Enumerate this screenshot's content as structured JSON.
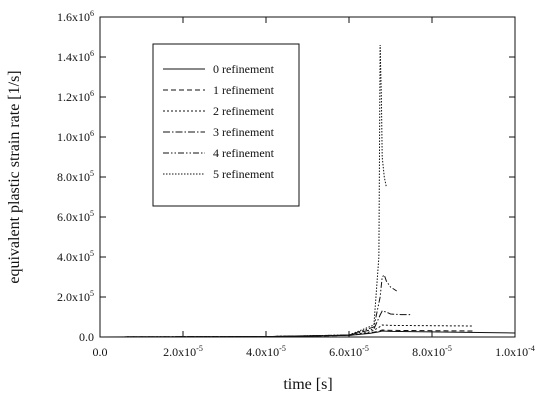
{
  "chart_data": {
    "type": "line",
    "title": "",
    "xlabel": "time [s]",
    "ylabel": "equivalent plastic strain rate [1/s]",
    "xlim": [
      0,
      0.0001
    ],
    "ylim": [
      0,
      1600000
    ],
    "grid": false,
    "legend_position": "top-left",
    "x_ticks": [
      {
        "value": 0,
        "label": "0.0"
      },
      {
        "value": 2e-05,
        "label": "2.0x10",
        "exp": "-5"
      },
      {
        "value": 4e-05,
        "label": "4.0x10",
        "exp": "-5"
      },
      {
        "value": 6e-05,
        "label": "6.0x10",
        "exp": "-5"
      },
      {
        "value": 8e-05,
        "label": "8.0x10",
        "exp": "-5"
      },
      {
        "value": 0.0001,
        "label": "1.0x10",
        "exp": "-4"
      }
    ],
    "y_ticks": [
      {
        "value": 0,
        "label": "0.0"
      },
      {
        "value": 200000,
        "label": "2.0x10",
        "exp": "5"
      },
      {
        "value": 400000,
        "label": "4.0x10",
        "exp": "5"
      },
      {
        "value": 600000,
        "label": "6.0x10",
        "exp": "5"
      },
      {
        "value": 800000,
        "label": "8.0x10",
        "exp": "5"
      },
      {
        "value": 1000000,
        "label": "1.0x10",
        "exp": "6"
      },
      {
        "value": 1200000,
        "label": "1.2x10",
        "exp": "6"
      },
      {
        "value": 1400000,
        "label": "1.4x10",
        "exp": "6"
      },
      {
        "value": 1600000,
        "label": "1.6x10",
        "exp": "6"
      }
    ],
    "series": [
      {
        "name": "0 refinement",
        "dash": "",
        "x": [
          0,
          4e-05,
          6e-05,
          6.5e-05,
          6.7e-05,
          6.8e-05,
          7e-05,
          0.0001
        ],
        "y": [
          0,
          2000,
          8000,
          18000,
          25000,
          30000,
          28000,
          20000
        ]
      },
      {
        "name": "1 refinement",
        "dash": "5,3",
        "x": [
          0,
          4e-05,
          6e-05,
          6.5e-05,
          6.7e-05,
          6.8e-05,
          7e-05,
          9e-05
        ],
        "y": [
          0,
          2000,
          8000,
          20000,
          28000,
          35000,
          33000,
          30000
        ]
      },
      {
        "name": "2 refinement",
        "dash": "2,2",
        "x": [
          0,
          4e-05,
          6e-05,
          6.5e-05,
          6.7e-05,
          6.8e-05,
          7e-05,
          9e-05
        ],
        "y": [
          0,
          2000,
          9000,
          25000,
          45000,
          60000,
          58000,
          55000
        ]
      },
      {
        "name": "3 refinement",
        "dash": "7,2,1.5,2",
        "x": [
          0,
          4e-05,
          6e-05,
          6.6e-05,
          6.75e-05,
          6.8e-05,
          6.9e-05,
          7e-05,
          7.25e-05,
          7.5e-05
        ],
        "y": [
          0,
          2000,
          10000,
          40000,
          110000,
          130000,
          125000,
          115000,
          112000,
          112000
        ]
      },
      {
        "name": "4 refinement",
        "dash": "6,2,1.5,2,1.5,2",
        "x": [
          0,
          4e-05,
          6e-05,
          6.6e-05,
          6.75e-05,
          6.8e-05,
          6.85e-05,
          6.9e-05,
          7e-05,
          7.15e-05
        ],
        "y": [
          0,
          2000,
          10000,
          50000,
          200000,
          300000,
          310000,
          280000,
          250000,
          230000
        ]
      },
      {
        "name": "5 refinement",
        "dash": "1.5,1.5",
        "x": [
          0,
          4e-05,
          6e-05,
          6.6e-05,
          6.72e-05,
          6.75e-05,
          6.78e-05,
          6.8e-05,
          6.85e-05,
          6.9e-05
        ],
        "y": [
          0,
          2000,
          10000,
          60000,
          400000,
          1460000,
          1200000,
          900000,
          800000,
          750000
        ]
      }
    ]
  }
}
